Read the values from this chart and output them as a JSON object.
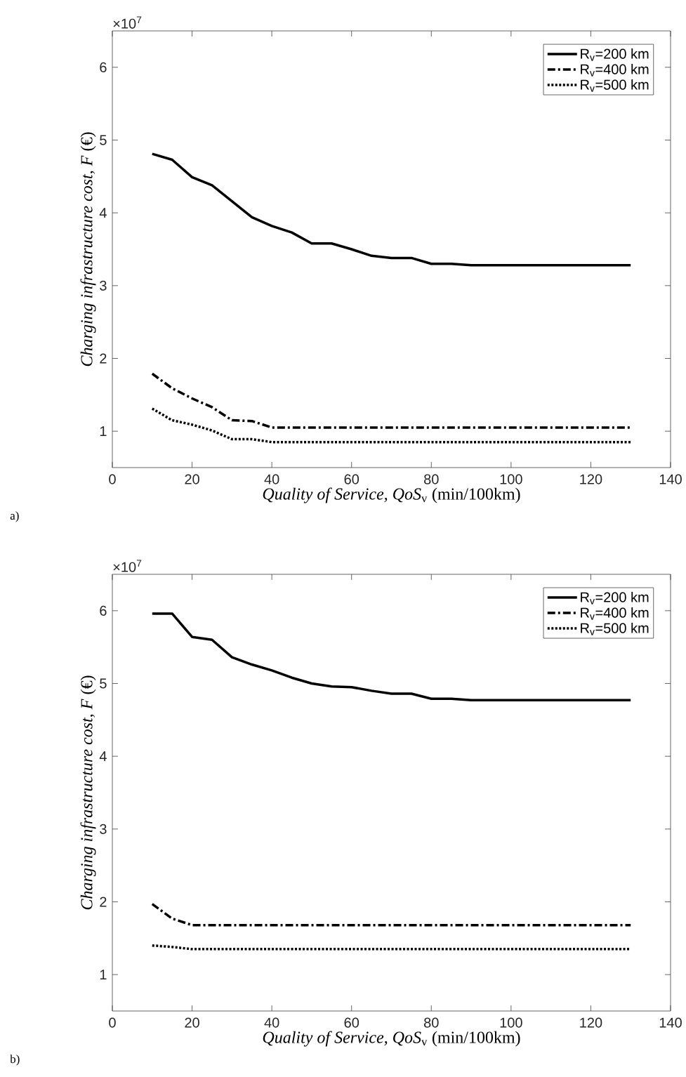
{
  "chart_data": [
    {
      "type": "line",
      "xlabel": "*Quality of Service, QoS*$_{v}$ (min/100km)",
      "ylabel": "*Charging infrastructure cost, F* (€)",
      "annotations": [
        "×10$^{7}$",
        "a)"
      ],
      "x": [
        10,
        15,
        20,
        25,
        30,
        35,
        40,
        45,
        50,
        55,
        60,
        65,
        70,
        75,
        80,
        85,
        90,
        95,
        100,
        105,
        110,
        115,
        120,
        125,
        130
      ],
      "xlim": [
        0,
        140
      ],
      "ylim": [
        0.5,
        6.5
      ],
      "xticks": [
        0,
        20,
        40,
        60,
        80,
        100,
        120,
        140
      ],
      "yticks": [
        1,
        2,
        3,
        4,
        5,
        6
      ],
      "legend": "top right",
      "grid": false,
      "series": [
        {
          "name": "R$_{v}$=200 km",
          "color": "#000000",
          "line_style": "solid",
          "values": [
            4.81,
            4.73,
            4.49,
            4.38,
            4.16,
            3.94,
            3.82,
            3.73,
            3.58,
            3.58,
            3.5,
            3.41,
            3.38,
            3.38,
            3.3,
            3.3,
            3.28,
            3.28,
            3.28,
            3.28,
            3.28,
            3.28,
            3.28,
            3.28,
            3.28
          ]
        },
        {
          "name": "R$_{v}$=400 km",
          "color": "#000000",
          "line_style": "dashed",
          "values": [
            1.79,
            1.59,
            1.45,
            1.33,
            1.15,
            1.14,
            1.05,
            1.05,
            1.05,
            1.05,
            1.05,
            1.05,
            1.05,
            1.05,
            1.05,
            1.05,
            1.05,
            1.05,
            1.05,
            1.05,
            1.05,
            1.05,
            1.05,
            1.05,
            1.05
          ]
        },
        {
          "name": "R$_{v}$=500 km",
          "color": "#000000",
          "line_style": "dotted",
          "values": [
            1.31,
            1.15,
            1.09,
            1.01,
            0.89,
            0.89,
            0.85,
            0.85,
            0.85,
            0.85,
            0.85,
            0.85,
            0.85,
            0.85,
            0.85,
            0.85,
            0.85,
            0.85,
            0.85,
            0.85,
            0.85,
            0.85,
            0.85,
            0.85,
            0.85
          ]
        }
      ]
    },
    {
      "type": "line",
      "xlabel": "*Quality of Service, QoS*$_{v}$ (min/100km)",
      "ylabel": "*Charging infrastructure cost, F* (€)",
      "annotations": [
        "×10$^{7}$",
        "b)"
      ],
      "x": [
        10,
        15,
        20,
        25,
        30,
        35,
        40,
        45,
        50,
        55,
        60,
        65,
        70,
        75,
        80,
        85,
        90,
        95,
        100,
        105,
        110,
        115,
        120,
        125,
        130
      ],
      "xlim": [
        0,
        140
      ],
      "ylim": [
        0.5,
        6.5
      ],
      "xticks": [
        0,
        20,
        40,
        60,
        80,
        100,
        120,
        140
      ],
      "yticks": [
        1,
        2,
        3,
        4,
        5,
        6
      ],
      "legend": "top right",
      "grid": false,
      "series": [
        {
          "name": "R$_{v}$=200 km",
          "color": "#000000",
          "line_style": "solid",
          "values": [
            5.96,
            5.96,
            5.64,
            5.6,
            5.36,
            5.26,
            5.18,
            5.08,
            5.0,
            4.96,
            4.95,
            4.9,
            4.86,
            4.86,
            4.79,
            4.79,
            4.77,
            4.77,
            4.77,
            4.77,
            4.77,
            4.77,
            4.77,
            4.77,
            4.77
          ]
        },
        {
          "name": "R$_{v}$=400 km",
          "color": "#000000",
          "line_style": "dashed",
          "values": [
            1.97,
            1.77,
            1.68,
            1.68,
            1.68,
            1.68,
            1.68,
            1.68,
            1.68,
            1.68,
            1.68,
            1.68,
            1.68,
            1.68,
            1.68,
            1.68,
            1.68,
            1.68,
            1.68,
            1.68,
            1.68,
            1.68,
            1.68,
            1.68,
            1.68
          ]
        },
        {
          "name": "R$_{v}$=500 km",
          "color": "#000000",
          "line_style": "dotted",
          "values": [
            1.4,
            1.38,
            1.35,
            1.35,
            1.35,
            1.35,
            1.35,
            1.35,
            1.35,
            1.35,
            1.35,
            1.35,
            1.35,
            1.35,
            1.35,
            1.35,
            1.35,
            1.35,
            1.35,
            1.35,
            1.35,
            1.35,
            1.35,
            1.35,
            1.35
          ]
        }
      ]
    }
  ]
}
